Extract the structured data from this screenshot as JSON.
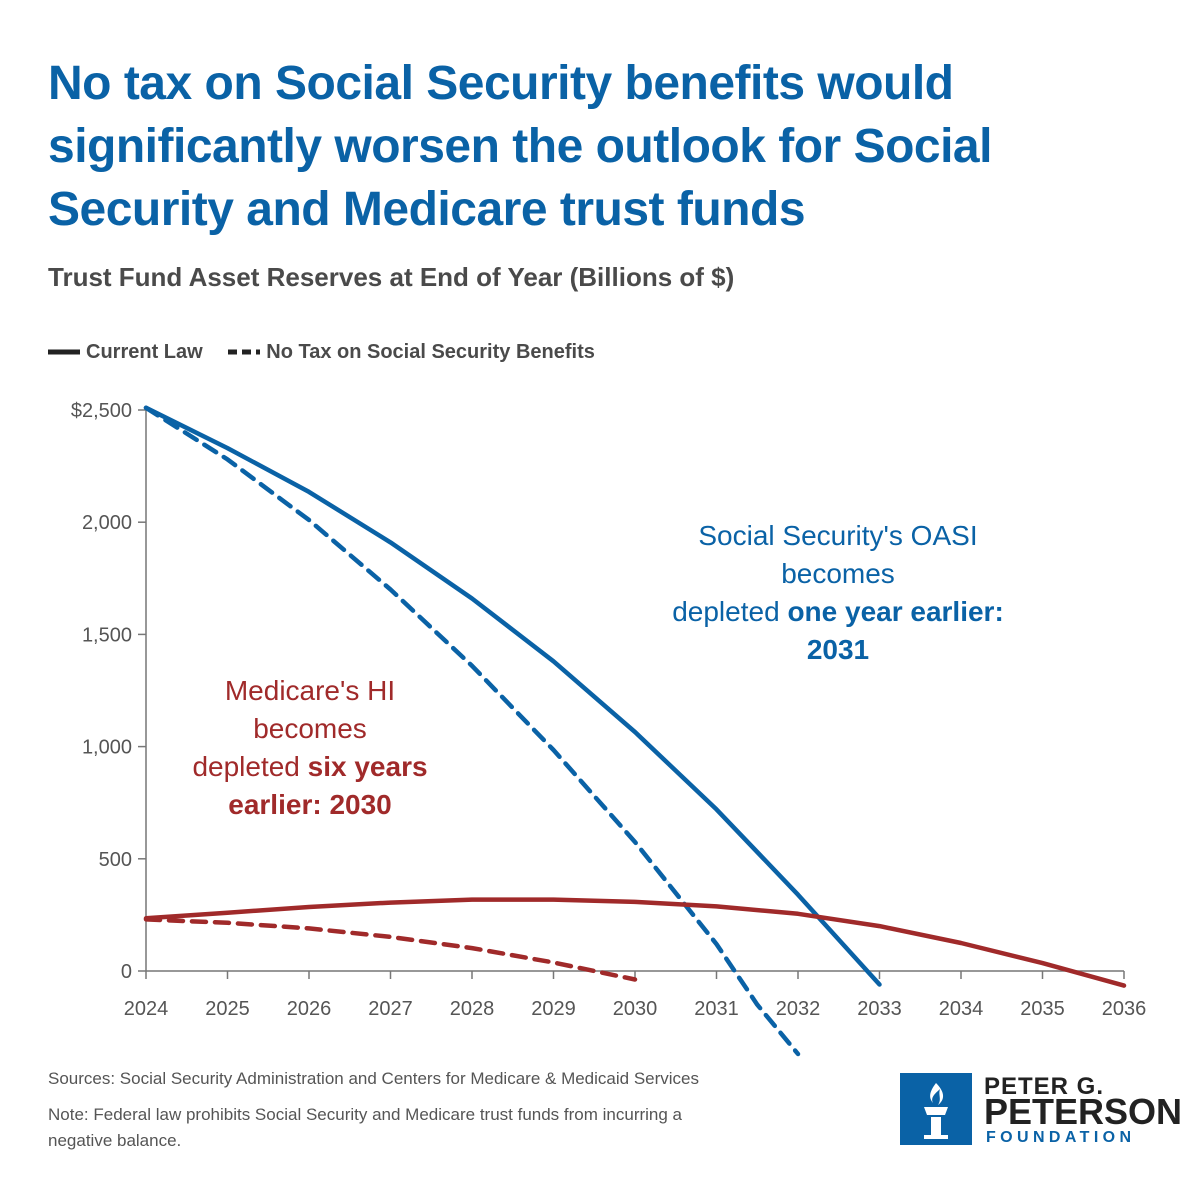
{
  "title": "No tax on Social Security benefits would significantly worsen the outlook for Social Security and Medicare trust funds",
  "subtitle": "Trust Fund Asset Reserves at End of Year (Billions of $)",
  "legend": {
    "current_law": "Current Law",
    "no_tax": "No Tax on Social Security Benefits"
  },
  "annotations": {
    "oasi": {
      "line1": "Social Security's OASI",
      "line2": "becomes",
      "line3_normal": "depleted ",
      "line3_bold": "one year earlier:",
      "line4_bold": "2031"
    },
    "hi": {
      "line1": "Medicare's HI",
      "line2": "becomes",
      "line3_normal": "depleted ",
      "line3_bold": "six years",
      "line4_bold": "earlier: 2030"
    }
  },
  "footer": {
    "sources": "Sources: Social Security Administration and Centers for Medicare & Medicaid Services",
    "note_line1": "Note: Federal law prohibits Social Security and Medicare trust funds from incurring a",
    "note_line2": "negative balance."
  },
  "logo": {
    "line1": "PETER G.",
    "line2": "PETERSON",
    "line3": "FOUNDATION"
  },
  "colors": {
    "oasi": "#0a62a6",
    "hi": "#a02a2a",
    "axis": "#777777",
    "text": "#555555"
  },
  "chart_data": {
    "type": "line",
    "title": "Trust Fund Asset Reserves at End of Year (Billions of $)",
    "xlabel": "",
    "ylabel": "",
    "x": [
      2024,
      2025,
      2026,
      2027,
      2028,
      2029,
      2030,
      2031,
      2032,
      2033,
      2034,
      2035,
      2036
    ],
    "ylim": [
      0,
      2500
    ],
    "yticks": [
      0,
      500,
      1000,
      1500,
      2000,
      2500
    ],
    "ytick_labels": [
      "0",
      "500",
      "1,000",
      "1,500",
      "2,000",
      "$2,500"
    ],
    "xlim": [
      2024,
      2036
    ],
    "grid": false,
    "legend_placement": "top-left",
    "series": [
      {
        "name": "OASI Current Law",
        "style": "solid",
        "color": "#0a62a6",
        "points": [
          [
            2024,
            2510
          ],
          [
            2025,
            2330
          ],
          [
            2026,
            2135
          ],
          [
            2027,
            1910
          ],
          [
            2028,
            1660
          ],
          [
            2029,
            1380
          ],
          [
            2030,
            1065
          ],
          [
            2031,
            720
          ],
          [
            2032,
            340
          ],
          [
            2033,
            -60
          ]
        ]
      },
      {
        "name": "OASI No Tax on Social Security Benefits",
        "style": "dashed",
        "color": "#0a62a6",
        "points": [
          [
            2024,
            2510
          ],
          [
            2025,
            2280
          ],
          [
            2026,
            2010
          ],
          [
            2027,
            1700
          ],
          [
            2028,
            1360
          ],
          [
            2029,
            985
          ],
          [
            2030,
            575
          ],
          [
            2031,
            120
          ],
          [
            2031.5,
            -150
          ],
          [
            2032,
            -370
          ]
        ]
      },
      {
        "name": "HI Current Law",
        "style": "solid",
        "color": "#a02a2a",
        "points": [
          [
            2024,
            235
          ],
          [
            2025,
            260
          ],
          [
            2026,
            285
          ],
          [
            2027,
            305
          ],
          [
            2028,
            318
          ],
          [
            2029,
            318
          ],
          [
            2030,
            308
          ],
          [
            2031,
            288
          ],
          [
            2032,
            255
          ],
          [
            2033,
            200
          ],
          [
            2034,
            125
          ],
          [
            2035,
            35
          ],
          [
            2036,
            -65
          ]
        ]
      },
      {
        "name": "HI No Tax on Social Security Benefits",
        "style": "dashed",
        "color": "#a02a2a",
        "points": [
          [
            2024,
            230
          ],
          [
            2025,
            215
          ],
          [
            2026,
            190
          ],
          [
            2027,
            152
          ],
          [
            2028,
            102
          ],
          [
            2029,
            38
          ],
          [
            2030,
            -38
          ]
        ]
      }
    ]
  }
}
